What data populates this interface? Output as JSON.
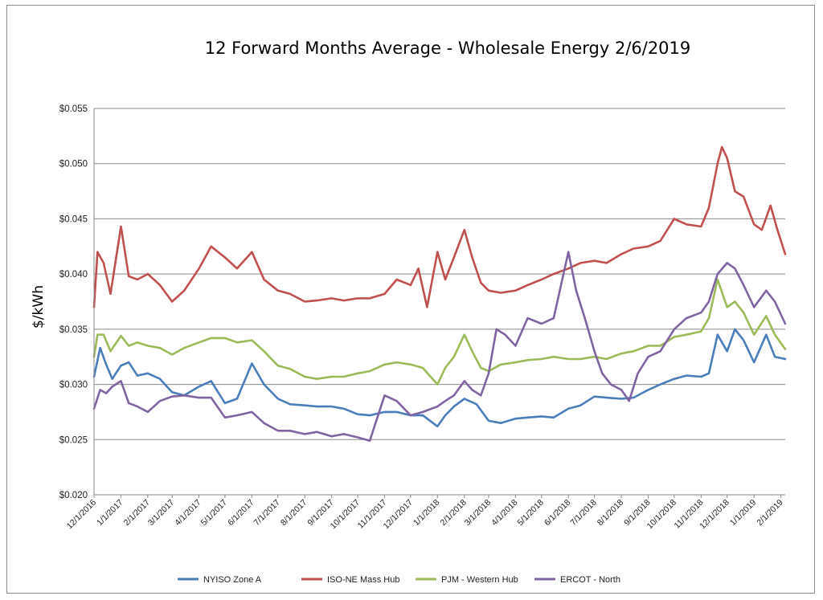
{
  "chart_data": {
    "type": "line",
    "title": "12 Forward Months Average - Wholesale Energy 2/6/2019",
    "xlabel": "",
    "ylabel": "$/kWh",
    "ylim": [
      0.02,
      0.055
    ],
    "yticks": [
      "$0.055",
      "$0.050",
      "$0.045",
      "$0.040",
      "$0.035",
      "$0.030",
      "$0.025",
      "$0.020"
    ],
    "ytick_values": [
      0.055,
      0.05,
      0.045,
      0.04,
      0.035,
      0.03,
      0.025,
      0.02
    ],
    "xticks": [
      "12/1/2016",
      "1/1/2017",
      "2/1/2017",
      "3/1/2017",
      "4/1/2017",
      "5/1/2017",
      "6/1/2017",
      "7/1/2017",
      "8/1/2017",
      "9/1/2017",
      "10/1/2017",
      "11/1/2017",
      "12/1/2017",
      "1/1/2018",
      "2/1/2018",
      "3/1/2018",
      "4/1/2018",
      "5/1/2018",
      "6/1/2018",
      "7/1/2018",
      "8/1/2018",
      "9/1/2018",
      "10/1/2018",
      "11/1/2018",
      "12/1/2018",
      "1/1/2019",
      "2/1/2019"
    ],
    "xlim": [
      "12/1/2016",
      "2/6/2019"
    ],
    "grid": "horizontal",
    "legend": "bottom",
    "series": [
      {
        "name": "NYISO Zone A",
        "color": "#4a7ebb",
        "points": [
          [
            "12/1/2016",
            0.0307
          ],
          [
            "12/8/2016",
            0.0333
          ],
          [
            "12/15/2016",
            0.0318
          ],
          [
            "12/22/2016",
            0.0305
          ],
          [
            "1/1/2017",
            0.0317
          ],
          [
            "1/10/2017",
            0.032
          ],
          [
            "1/20/2017",
            0.0308
          ],
          [
            "2/1/2017",
            0.031
          ],
          [
            "2/15/2017",
            0.0305
          ],
          [
            "3/1/2017",
            0.0293
          ],
          [
            "3/15/2017",
            0.029
          ],
          [
            "4/1/2017",
            0.0298
          ],
          [
            "4/15/2017",
            0.0303
          ],
          [
            "5/1/2017",
            0.0283
          ],
          [
            "5/15/2017",
            0.0287
          ],
          [
            "6/1/2017",
            0.0319
          ],
          [
            "6/15/2017",
            0.03
          ],
          [
            "7/1/2017",
            0.0287
          ],
          [
            "7/15/2017",
            0.0282
          ],
          [
            "8/1/2017",
            0.0281
          ],
          [
            "8/15/2017",
            0.028
          ],
          [
            "9/1/2017",
            0.028
          ],
          [
            "9/15/2017",
            0.0278
          ],
          [
            "10/1/2017",
            0.0273
          ],
          [
            "10/15/2017",
            0.0272
          ],
          [
            "11/1/2017",
            0.0275
          ],
          [
            "11/15/2017",
            0.0275
          ],
          [
            "12/1/2017",
            0.0272
          ],
          [
            "12/15/2017",
            0.0272
          ],
          [
            "1/1/2018",
            0.0262
          ],
          [
            "1/10/2018",
            0.0272
          ],
          [
            "1/20/2018",
            0.028
          ],
          [
            "2/1/2018",
            0.0287
          ],
          [
            "2/15/2018",
            0.0282
          ],
          [
            "3/1/2018",
            0.0267
          ],
          [
            "3/15/2018",
            0.0265
          ],
          [
            "4/1/2018",
            0.0269
          ],
          [
            "4/15/2018",
            0.027
          ],
          [
            "5/1/2018",
            0.0271
          ],
          [
            "5/15/2018",
            0.027
          ],
          [
            "6/1/2018",
            0.0278
          ],
          [
            "6/15/2018",
            0.0281
          ],
          [
            "7/1/2018",
            0.0289
          ],
          [
            "7/15/2018",
            0.0288
          ],
          [
            "8/1/2018",
            0.0287
          ],
          [
            "8/15/2018",
            0.0288
          ],
          [
            "9/1/2018",
            0.0295
          ],
          [
            "9/15/2018",
            0.03
          ],
          [
            "10/1/2018",
            0.0305
          ],
          [
            "10/15/2018",
            0.0308
          ],
          [
            "11/1/2018",
            0.0307
          ],
          [
            "11/10/2018",
            0.031
          ],
          [
            "11/20/2018",
            0.0345
          ],
          [
            "12/1/2018",
            0.033
          ],
          [
            "12/10/2018",
            0.035
          ],
          [
            "12/20/2018",
            0.034
          ],
          [
            "1/1/2019",
            0.032
          ],
          [
            "1/15/2019",
            0.0345
          ],
          [
            "1/25/2019",
            0.0325
          ],
          [
            "2/6/2019",
            0.0323
          ]
        ]
      },
      {
        "name": "ISO-NE Mass Hub",
        "color": "#c0504d",
        "points": [
          [
            "12/1/2016",
            0.037
          ],
          [
            "12/5/2016",
            0.042
          ],
          [
            "12/12/2016",
            0.041
          ],
          [
            "12/20/2016",
            0.0382
          ],
          [
            "1/1/2017",
            0.0443
          ],
          [
            "1/10/2017",
            0.0398
          ],
          [
            "1/20/2017",
            0.0395
          ],
          [
            "2/1/2017",
            0.04
          ],
          [
            "2/15/2017",
            0.039
          ],
          [
            "3/1/2017",
            0.0375
          ],
          [
            "3/15/2017",
            0.0385
          ],
          [
            "4/1/2017",
            0.0405
          ],
          [
            "4/15/2017",
            0.0425
          ],
          [
            "5/1/2017",
            0.0415
          ],
          [
            "5/15/2017",
            0.0405
          ],
          [
            "6/1/2017",
            0.042
          ],
          [
            "6/15/2017",
            0.0395
          ],
          [
            "7/1/2017",
            0.0385
          ],
          [
            "7/15/2017",
            0.0382
          ],
          [
            "8/1/2017",
            0.0375
          ],
          [
            "8/15/2017",
            0.0376
          ],
          [
            "9/1/2017",
            0.0378
          ],
          [
            "9/15/2017",
            0.0376
          ],
          [
            "10/1/2017",
            0.0378
          ],
          [
            "10/15/2017",
            0.0378
          ],
          [
            "11/1/2017",
            0.0382
          ],
          [
            "11/15/2017",
            0.0395
          ],
          [
            "12/1/2017",
            0.039
          ],
          [
            "12/10/2017",
            0.0405
          ],
          [
            "12/20/2017",
            0.037
          ],
          [
            "1/1/2018",
            0.042
          ],
          [
            "1/10/2018",
            0.0395
          ],
          [
            "1/20/2018",
            0.0415
          ],
          [
            "2/1/2018",
            0.044
          ],
          [
            "2/10/2018",
            0.0415
          ],
          [
            "2/20/2018",
            0.0392
          ],
          [
            "3/1/2018",
            0.0385
          ],
          [
            "3/15/2018",
            0.0383
          ],
          [
            "4/1/2018",
            0.0385
          ],
          [
            "4/15/2018",
            0.039
          ],
          [
            "5/1/2018",
            0.0395
          ],
          [
            "5/15/2018",
            0.04
          ],
          [
            "6/1/2018",
            0.0405
          ],
          [
            "6/15/2018",
            0.041
          ],
          [
            "7/1/2018",
            0.0412
          ],
          [
            "7/15/2018",
            0.041
          ],
          [
            "8/1/2018",
            0.0418
          ],
          [
            "8/15/2018",
            0.0423
          ],
          [
            "9/1/2018",
            0.0425
          ],
          [
            "9/15/2018",
            0.043
          ],
          [
            "10/1/2018",
            0.045
          ],
          [
            "10/15/2018",
            0.0445
          ],
          [
            "11/1/2018",
            0.0443
          ],
          [
            "11/10/2018",
            0.046
          ],
          [
            "11/20/2018",
            0.05
          ],
          [
            "11/25/2018",
            0.0515
          ],
          [
            "12/1/2018",
            0.0505
          ],
          [
            "12/10/2018",
            0.0475
          ],
          [
            "12/20/2018",
            0.047
          ],
          [
            "1/1/2019",
            0.0445
          ],
          [
            "1/10/2019",
            0.044
          ],
          [
            "1/20/2019",
            0.0462
          ],
          [
            "1/28/2019",
            0.044
          ],
          [
            "2/6/2019",
            0.0418
          ]
        ]
      },
      {
        "name": "PJM - Western Hub",
        "color": "#9bbb59",
        "points": [
          [
            "12/1/2016",
            0.0325
          ],
          [
            "12/5/2016",
            0.0345
          ],
          [
            "12/12/2016",
            0.0345
          ],
          [
            "12/20/2016",
            0.033
          ],
          [
            "1/1/2017",
            0.0344
          ],
          [
            "1/10/2017",
            0.0335
          ],
          [
            "1/20/2017",
            0.0338
          ],
          [
            "2/1/2017",
            0.0335
          ],
          [
            "2/15/2017",
            0.0333
          ],
          [
            "3/1/2017",
            0.0327
          ],
          [
            "3/15/2017",
            0.0333
          ],
          [
            "4/1/2017",
            0.0338
          ],
          [
            "4/15/2017",
            0.0342
          ],
          [
            "5/1/2017",
            0.0342
          ],
          [
            "5/15/2017",
            0.0338
          ],
          [
            "6/1/2017",
            0.034
          ],
          [
            "6/15/2017",
            0.033
          ],
          [
            "7/1/2017",
            0.0317
          ],
          [
            "7/15/2017",
            0.0314
          ],
          [
            "8/1/2017",
            0.0307
          ],
          [
            "8/15/2017",
            0.0305
          ],
          [
            "9/1/2017",
            0.0307
          ],
          [
            "9/15/2017",
            0.0307
          ],
          [
            "10/1/2017",
            0.031
          ],
          [
            "10/15/2017",
            0.0312
          ],
          [
            "11/1/2017",
            0.0318
          ],
          [
            "11/15/2017",
            0.032
          ],
          [
            "12/1/2017",
            0.0318
          ],
          [
            "12/15/2017",
            0.0315
          ],
          [
            "1/1/2018",
            0.03
          ],
          [
            "1/10/2018",
            0.0315
          ],
          [
            "1/20/2018",
            0.0325
          ],
          [
            "2/1/2018",
            0.0345
          ],
          [
            "2/10/2018",
            0.033
          ],
          [
            "2/20/2018",
            0.0315
          ],
          [
            "3/1/2018",
            0.0312
          ],
          [
            "3/15/2018",
            0.0318
          ],
          [
            "4/1/2018",
            0.032
          ],
          [
            "4/15/2018",
            0.0322
          ],
          [
            "5/1/2018",
            0.0323
          ],
          [
            "5/15/2018",
            0.0325
          ],
          [
            "6/1/2018",
            0.0323
          ],
          [
            "6/15/2018",
            0.0323
          ],
          [
            "7/1/2018",
            0.0325
          ],
          [
            "7/15/2018",
            0.0323
          ],
          [
            "8/1/2018",
            0.0328
          ],
          [
            "8/15/2018",
            0.033
          ],
          [
            "9/1/2018",
            0.0335
          ],
          [
            "9/15/2018",
            0.0335
          ],
          [
            "10/1/2018",
            0.0343
          ],
          [
            "10/15/2018",
            0.0345
          ],
          [
            "11/1/2018",
            0.0348
          ],
          [
            "11/10/2018",
            0.036
          ],
          [
            "11/20/2018",
            0.0395
          ],
          [
            "12/1/2018",
            0.037
          ],
          [
            "12/10/2018",
            0.0375
          ],
          [
            "12/20/2018",
            0.0365
          ],
          [
            "1/1/2019",
            0.0345
          ],
          [
            "1/15/2019",
            0.0362
          ],
          [
            "1/25/2019",
            0.0345
          ],
          [
            "2/6/2019",
            0.0332
          ]
        ]
      },
      {
        "name": "ERCOT - North",
        "color": "#8064a2",
        "points": [
          [
            "12/1/2016",
            0.0278
          ],
          [
            "12/8/2016",
            0.0295
          ],
          [
            "12/15/2016",
            0.0292
          ],
          [
            "12/22/2016",
            0.0298
          ],
          [
            "1/1/2017",
            0.0303
          ],
          [
            "1/10/2017",
            0.0283
          ],
          [
            "1/20/2017",
            0.028
          ],
          [
            "2/1/2017",
            0.0275
          ],
          [
            "2/15/2017",
            0.0285
          ],
          [
            "3/1/2017",
            0.0289
          ],
          [
            "3/15/2017",
            0.029
          ],
          [
            "4/1/2017",
            0.0288
          ],
          [
            "4/15/2017",
            0.0288
          ],
          [
            "5/1/2017",
            0.027
          ],
          [
            "5/15/2017",
            0.0272
          ],
          [
            "6/1/2017",
            0.0275
          ],
          [
            "6/15/2017",
            0.0265
          ],
          [
            "7/1/2017",
            0.0258
          ],
          [
            "7/15/2017",
            0.0258
          ],
          [
            "8/1/2017",
            0.0255
          ],
          [
            "8/15/2017",
            0.0257
          ],
          [
            "9/1/2017",
            0.0253
          ],
          [
            "9/15/2017",
            0.0255
          ],
          [
            "10/1/2017",
            0.0252
          ],
          [
            "10/15/2017",
            0.0249
          ],
          [
            "11/1/2017",
            0.029
          ],
          [
            "11/15/2017",
            0.0285
          ],
          [
            "12/1/2017",
            0.0272
          ],
          [
            "12/15/2017",
            0.0275
          ],
          [
            "1/1/2018",
            0.028
          ],
          [
            "1/10/2018",
            0.0285
          ],
          [
            "1/20/2018",
            0.029
          ],
          [
            "2/1/2018",
            0.0303
          ],
          [
            "2/10/2018",
            0.0295
          ],
          [
            "2/20/2018",
            0.029
          ],
          [
            "3/1/2018",
            0.031
          ],
          [
            "3/10/2018",
            0.035
          ],
          [
            "3/20/2018",
            0.0345
          ],
          [
            "4/1/2018",
            0.0335
          ],
          [
            "4/15/2018",
            0.036
          ],
          [
            "5/1/2018",
            0.0355
          ],
          [
            "5/15/2018",
            0.036
          ],
          [
            "6/1/2018",
            0.042
          ],
          [
            "6/10/2018",
            0.0385
          ],
          [
            "6/20/2018",
            0.036
          ],
          [
            "7/1/2018",
            0.033
          ],
          [
            "7/10/2018",
            0.031
          ],
          [
            "7/20/2018",
            0.03
          ],
          [
            "8/1/2018",
            0.0295
          ],
          [
            "8/10/2018",
            0.0285
          ],
          [
            "8/20/2018",
            0.031
          ],
          [
            "9/1/2018",
            0.0325
          ],
          [
            "9/15/2018",
            0.033
          ],
          [
            "10/1/2018",
            0.035
          ],
          [
            "10/15/2018",
            0.036
          ],
          [
            "11/1/2018",
            0.0365
          ],
          [
            "11/10/2018",
            0.0375
          ],
          [
            "11/20/2018",
            0.04
          ],
          [
            "12/1/2018",
            0.041
          ],
          [
            "12/10/2018",
            0.0405
          ],
          [
            "12/20/2018",
            0.039
          ],
          [
            "1/1/2019",
            0.037
          ],
          [
            "1/15/2019",
            0.0385
          ],
          [
            "1/25/2019",
            0.0375
          ],
          [
            "2/6/2019",
            0.0355
          ]
        ]
      }
    ]
  }
}
